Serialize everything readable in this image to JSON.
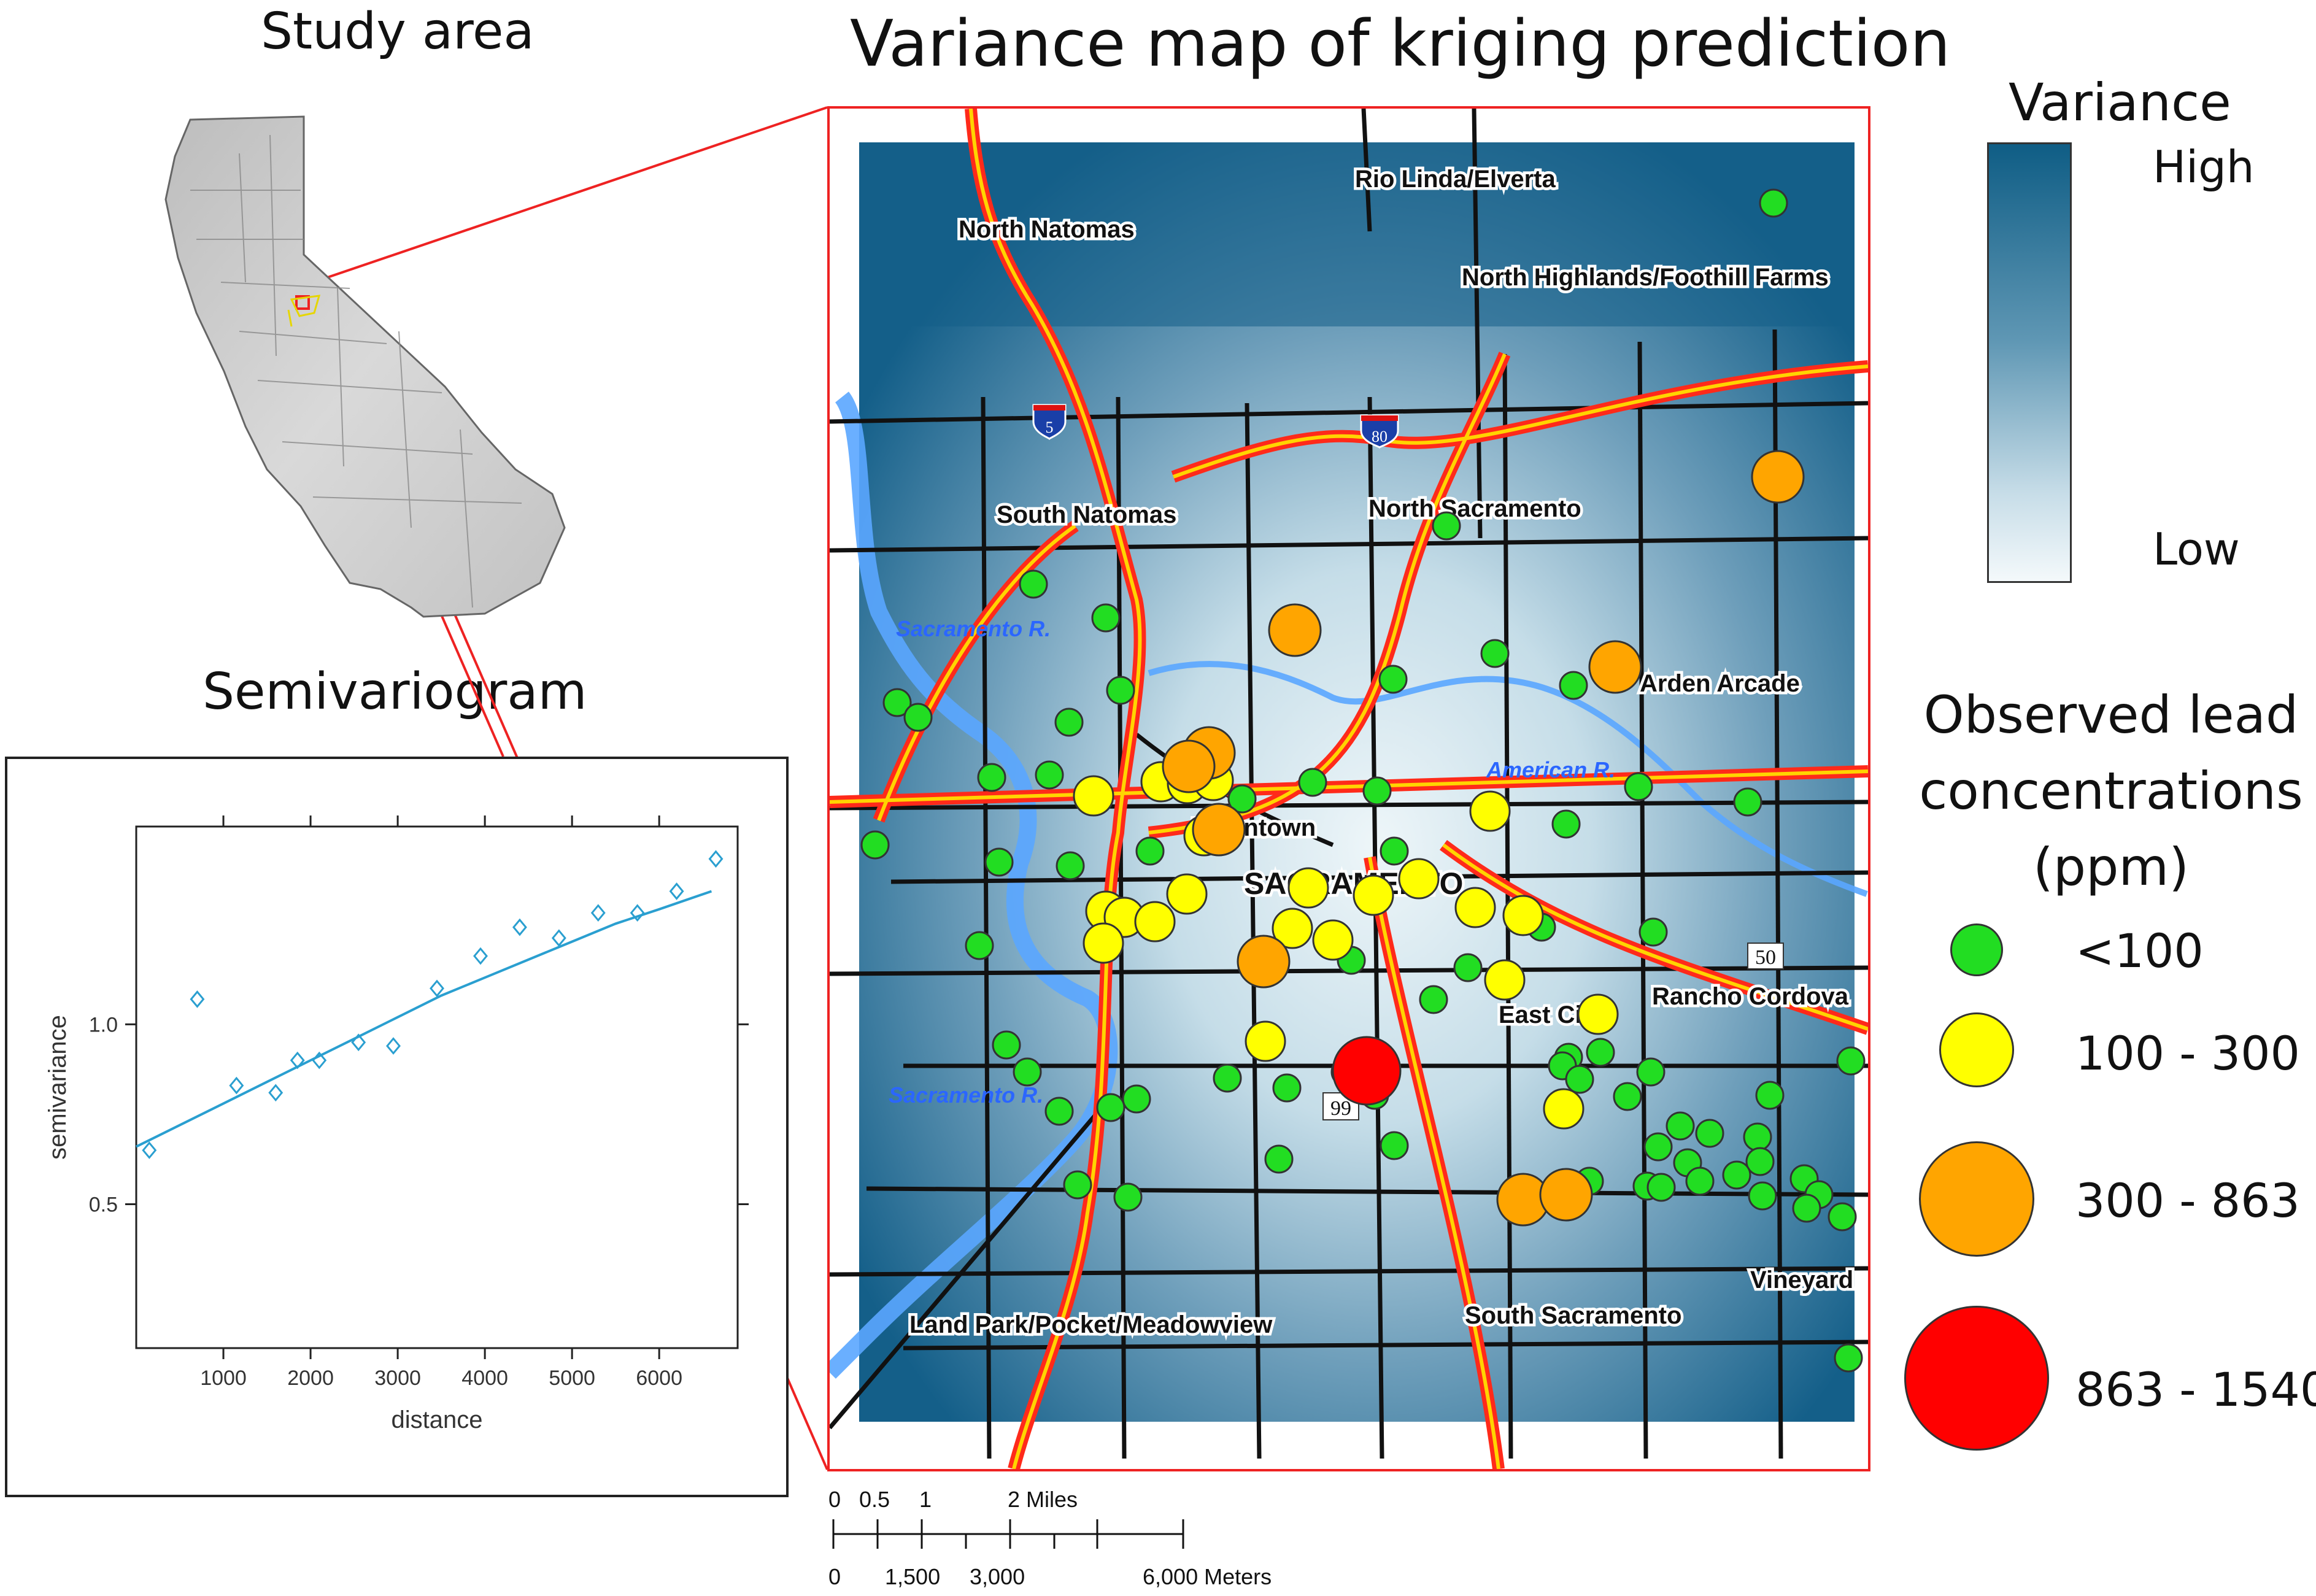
{
  "titles": {
    "main": "Variance map of kriging prediction",
    "study_area": "Study area",
    "semivariogram": "Semivariogram"
  },
  "map_labels": {
    "rio_linda": "Rio Linda/Elverta",
    "north_natomas": "North Natomas",
    "north_highlands": "North Highlands/Foothill Farms",
    "south_natomas": "South Natomas",
    "north_sacramento": "North Sacramento",
    "arden_arcade": "Arden Arcade",
    "american_r": "American R.",
    "sacramento_r_upper": "Sacramento R.",
    "sacramento_r_lower": "Sacramento R.",
    "downtown": "Downtown",
    "sacramento": "SACRAMENTO",
    "east_city": "East City",
    "rancho_cordova": "Rancho Cordova",
    "vineyard": "Vineyard",
    "south_sacramento": "South Sacramento",
    "land_park": "Land Park/Pocket/Meadowview",
    "hwy_5": "5",
    "hwy_80": "80",
    "hwy_50": "50",
    "hwy_99": "99"
  },
  "variance_legend": {
    "title": "Variance",
    "high": "High",
    "low": "Low"
  },
  "observed_legend": {
    "title": "Observed lead concentrations (ppm)",
    "classes": [
      {
        "label": "<100",
        "color": "#22dd22"
      },
      {
        "label": "100 - 300",
        "color": "#ffff00"
      },
      {
        "label": "300 - 863",
        "color": "#ffa500"
      },
      {
        "label": "863 - 1540",
        "color": "#ff0000"
      }
    ]
  },
  "scale_bar": {
    "miles_labels": [
      "0",
      "0.5",
      "1",
      "2 Miles"
    ],
    "meters_labels": [
      "0",
      "1,500",
      "3,000",
      "6,000 Meters"
    ]
  },
  "chart_data": {
    "type": "scatter",
    "xlabel": "distance",
    "ylabel": "semivariance",
    "x_ticks": [
      1000,
      2000,
      3000,
      4000,
      5000,
      6000
    ],
    "y_ticks": [
      0.5,
      1.0
    ],
    "y_tick_labels": [
      "0.5",
      "1.0"
    ],
    "xlim": [
      0,
      6900
    ],
    "ylim": [
      0.1,
      1.55
    ],
    "points": [
      [
        150,
        0.65
      ],
      [
        700,
        1.07
      ],
      [
        1150,
        0.83
      ],
      [
        1600,
        0.81
      ],
      [
        1850,
        0.9
      ],
      [
        2100,
        0.9
      ],
      [
        2550,
        0.95
      ],
      [
        2950,
        0.94
      ],
      [
        3450,
        1.1
      ],
      [
        3950,
        1.19
      ],
      [
        4400,
        1.27
      ],
      [
        4850,
        1.24
      ],
      [
        5300,
        1.31
      ],
      [
        5750,
        1.31
      ],
      [
        6200,
        1.37
      ],
      [
        6650,
        1.46
      ]
    ],
    "fit": [
      [
        0,
        0.66
      ],
      [
        500,
        0.72
      ],
      [
        1000,
        0.78
      ],
      [
        1500,
        0.84
      ],
      [
        2000,
        0.9
      ],
      [
        2500,
        0.96
      ],
      [
        3000,
        1.02
      ],
      [
        3500,
        1.08
      ],
      [
        4000,
        1.13
      ],
      [
        4500,
        1.18
      ],
      [
        5000,
        1.23
      ],
      [
        5500,
        1.28
      ],
      [
        6000,
        1.32
      ],
      [
        6600,
        1.37
      ]
    ]
  }
}
